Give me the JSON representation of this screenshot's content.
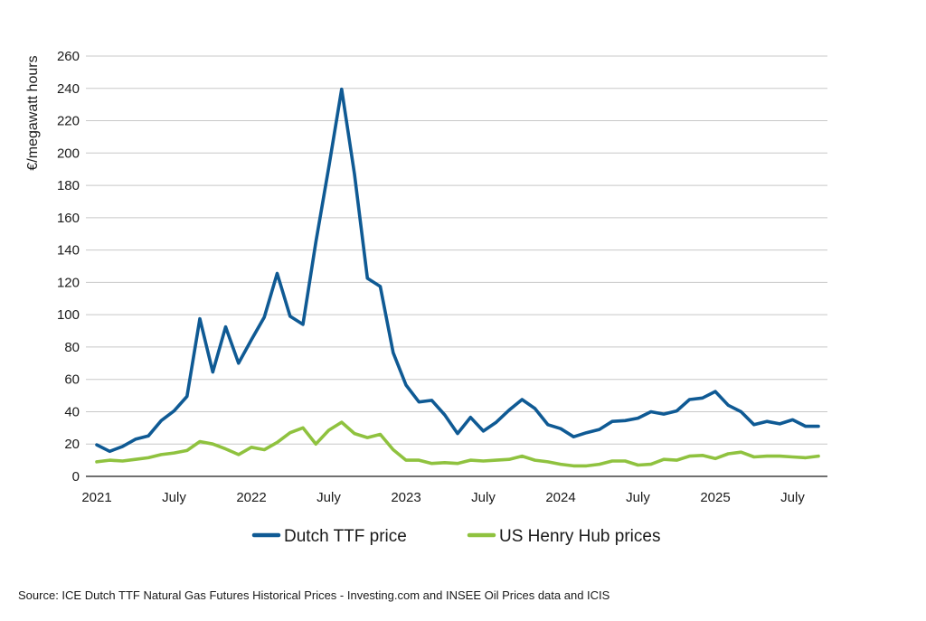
{
  "chart_data": {
    "type": "line",
    "title": "",
    "ylabel": "€/megawatt hours",
    "xlabel": "",
    "ylim": [
      0,
      260
    ],
    "yticks": [
      0,
      20,
      40,
      60,
      80,
      100,
      120,
      140,
      160,
      180,
      200,
      220,
      240,
      260
    ],
    "grid": true,
    "legend_position": "bottom",
    "x_tick_labels": [
      {
        "label": "2021",
        "index": 0
      },
      {
        "label": "July",
        "index": 6
      },
      {
        "label": "2022",
        "index": 12
      },
      {
        "label": "July",
        "index": 18
      },
      {
        "label": "2023",
        "index": 24
      },
      {
        "label": "July",
        "index": 30
      },
      {
        "label": "2024",
        "index": 36
      },
      {
        "label": "July",
        "index": 42
      },
      {
        "label": "2025",
        "index": 48
      },
      {
        "label": "July",
        "index": 54
      }
    ],
    "series": [
      {
        "name": "Dutch TTF price",
        "color": "#0f5a94",
        "values": [
          19.5,
          15.5,
          18.5,
          23,
          25,
          34.5,
          40.5,
          49.5,
          97.5,
          64.5,
          92.5,
          70,
          84.5,
          98.5,
          125.5,
          99,
          94,
          145,
          191,
          239.5,
          187,
          122.5,
          117.5,
          76.5,
          56.5,
          46,
          47,
          38,
          26.5,
          36.5,
          28,
          33.5,
          41,
          47.5,
          42,
          32,
          29.5,
          24.5,
          27,
          29,
          34,
          34.5,
          36,
          40,
          38.5,
          40.5,
          47.5,
          48.5,
          52.5,
          44,
          40,
          32,
          34,
          32.5,
          35,
          31,
          31
        ]
      },
      {
        "name": "US Henry Hub prices",
        "color": "#8fc23f",
        "values": [
          9,
          10,
          9.5,
          10.5,
          11.5,
          13.5,
          14.5,
          16,
          21.5,
          20,
          17,
          13.5,
          18,
          16.5,
          21,
          27,
          30,
          20,
          28.5,
          33.5,
          26.5,
          24,
          26,
          16.5,
          10,
          10,
          8,
          8.5,
          8,
          10,
          9.5,
          10,
          10.5,
          12.5,
          10,
          9,
          7.5,
          6.5,
          6.5,
          7.5,
          9.5,
          9.5,
          7,
          7.5,
          10.5,
          10,
          12.5,
          13,
          11,
          14,
          15,
          12,
          12.5,
          12.5,
          12,
          11.5,
          12.5
        ]
      }
    ]
  },
  "source": "Source: ICE Dutch TTF Natural Gas Futures Historical Prices - Investing.com and INSEE Oil Prices data and ICIS"
}
